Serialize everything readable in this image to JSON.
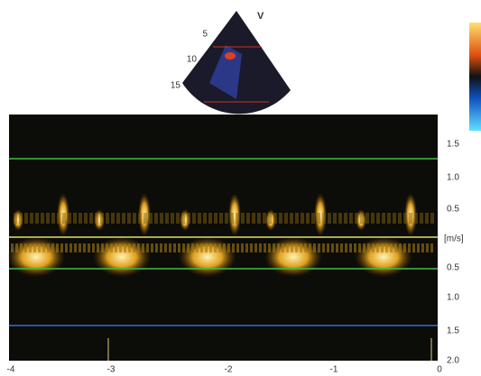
{
  "sector": {
    "label": "V",
    "depth_labels": [
      "5",
      "10",
      "15"
    ]
  },
  "spectral": {
    "unit": "[m/s]",
    "velocity_labels": [
      "1.5",
      "1.0",
      "0.5",
      "0.5",
      "1.0",
      "1.5",
      "2.0"
    ],
    "time_labels": [
      "-4",
      "-3",
      "-2",
      "-1",
      "0"
    ]
  }
}
